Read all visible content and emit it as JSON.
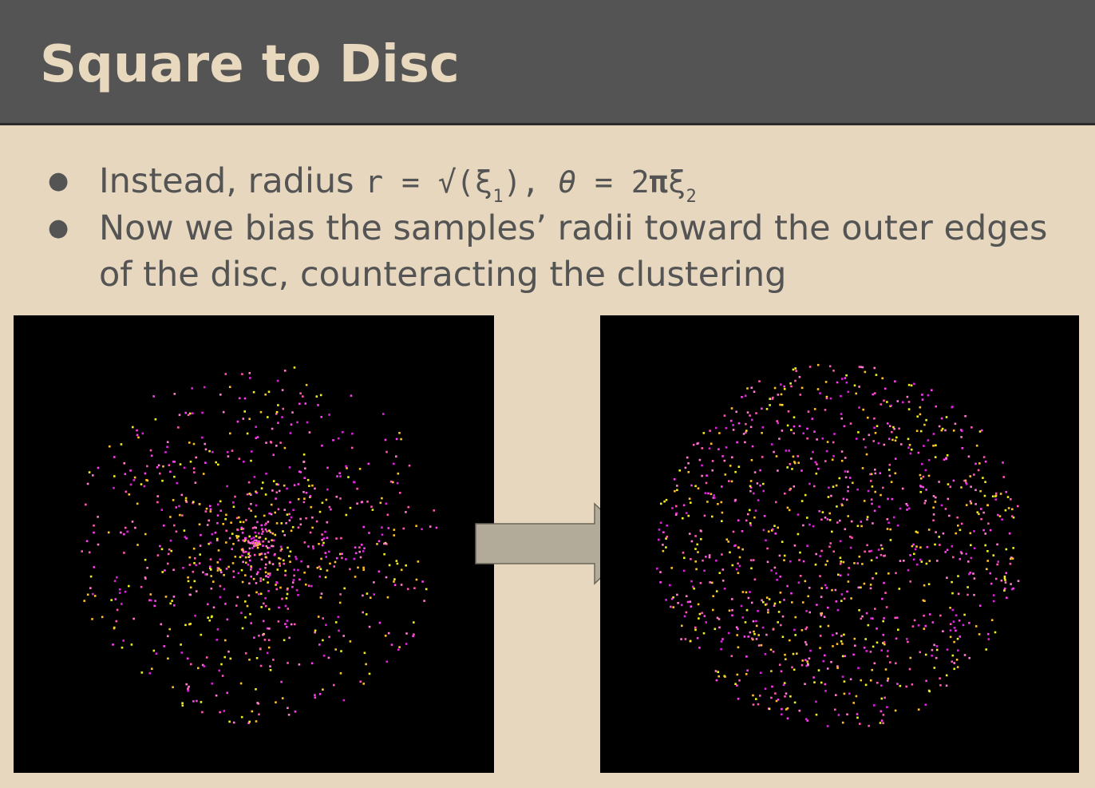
{
  "slide": {
    "title": "Square to Disc",
    "bullets": [
      {
        "prefix": "Instead, radius ",
        "formula": {
          "r_eq": "r = √(ξ",
          "sub1": "1",
          "mid": "), ",
          "theta": "θ",
          "eq2": " = 2",
          "pi": "π",
          "xi": "ξ",
          "sub2": "2"
        }
      },
      {
        "text": "Now we bias the samples’ radii toward the outer edges of the disc, counteracting the clustering"
      }
    ]
  },
  "colors": {
    "background": "#e6d7be",
    "header": "#545454",
    "title_text": "#e8d8bd",
    "body_text": "#545454",
    "arrow_fill": "#b3ab9a",
    "arrow_stroke": "#6b6658",
    "sample_palette": [
      "#ff3df2",
      "#e020e0",
      "#ff55b5",
      "#ffc02a",
      "#f0f020",
      "#ff7ad0"
    ]
  },
  "figures": [
    {
      "name": "uniform-radius-disc",
      "mapping": "r = xi1",
      "sample_count": 900
    },
    {
      "name": "sqrt-radius-disc",
      "mapping": "r = sqrt(xi1)",
      "sample_count": 1100
    }
  ],
  "icons": {
    "arrow": "right-arrow-icon",
    "bullet": "bullet-dot-icon"
  }
}
